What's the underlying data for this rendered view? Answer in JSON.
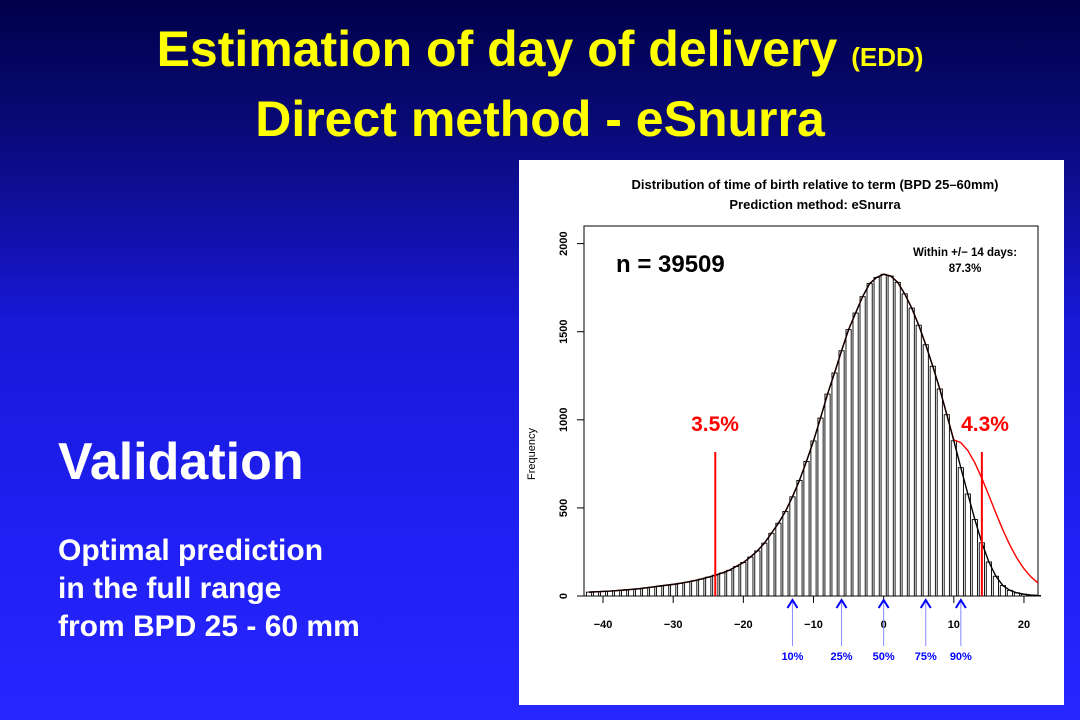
{
  "slide": {
    "title_main": "Estimation of day of delivery",
    "title_suffix": "(EDD)",
    "subtitle": "Direct method - eSnurra",
    "heading": "Validation",
    "body_lines": [
      "Optimal prediction",
      "in the full range",
      "from BPD 25 - 60 mm"
    ]
  },
  "chart_data": {
    "type": "bar",
    "title": "Distribution of time of birth relative to term (BPD 25–60mm)",
    "subtitle": "Prediction method: eSnurra",
    "ylabel": "Frequency",
    "xlabel": "",
    "xlim": [
      -42,
      22
    ],
    "ylim": [
      0,
      2100
    ],
    "xticks": [
      "−40",
      "−30",
      "−20",
      "−10",
      "0",
      "10",
      "20"
    ],
    "xtick_values": [
      -40,
      -30,
      -20,
      -10,
      0,
      10,
      20
    ],
    "yticks": [
      "0",
      "500",
      "1000",
      "1500",
      "2000"
    ],
    "ytick_values": [
      0,
      500,
      1000,
      1500,
      2000
    ],
    "n_label": "n = 39509",
    "within_label_1": "Within +/− 14 days:",
    "within_label_2": "87.3%",
    "cut_left": {
      "x": -24,
      "label": "3.5%"
    },
    "cut_right": {
      "x": 14,
      "label": "4.3%"
    },
    "percentiles": [
      {
        "x": -13,
        "label": "10%"
      },
      {
        "x": -6,
        "label": "25%"
      },
      {
        "x": 0,
        "label": "50%"
      },
      {
        "x": 6,
        "label": "75%"
      },
      {
        "x": 11,
        "label": "90%"
      }
    ],
    "bars": {
      "x": [
        -42,
        -41,
        -40,
        -39,
        -38,
        -37,
        -36,
        -35,
        -34,
        -33,
        -32,
        -31,
        -30,
        -29,
        -28,
        -27,
        -26,
        -25,
        -24,
        -23,
        -22,
        -21,
        -20,
        -19,
        -18,
        -17,
        -16,
        -15,
        -14,
        -13,
        -12,
        -11,
        -10,
        -9,
        -8,
        -7,
        -6,
        -5,
        -4,
        -3,
        -2,
        -1,
        0,
        1,
        2,
        3,
        4,
        5,
        6,
        7,
        8,
        9,
        10,
        11,
        12,
        13,
        14,
        15,
        16,
        17,
        18,
        19,
        20,
        21,
        22
      ],
      "values": [
        22,
        24,
        26,
        28,
        31,
        34,
        37,
        41,
        46,
        51,
        56,
        61,
        66,
        72,
        79,
        87,
        96,
        107,
        118,
        131,
        146,
        168,
        190,
        221,
        256,
        300,
        356,
        413,
        480,
        563,
        656,
        764,
        880,
        1010,
        1146,
        1266,
        1392,
        1512,
        1606,
        1699,
        1773,
        1808,
        1826,
        1816,
        1780,
        1715,
        1634,
        1537,
        1426,
        1304,
        1175,
        1029,
        881,
        728,
        579,
        434,
        302,
        193,
        112,
        59,
        32,
        18,
        10,
        5,
        3
      ]
    },
    "series": [
      {
        "name": "normal-fit",
        "color": "#ff0000"
      },
      {
        "name": "empirical",
        "color": "#000000"
      }
    ],
    "colors": {
      "cut_lines": "#ff0000",
      "percentile_markers": "#0000ff",
      "percentile_lines": "#8888ff"
    },
    "grid": false,
    "legend": "none"
  }
}
